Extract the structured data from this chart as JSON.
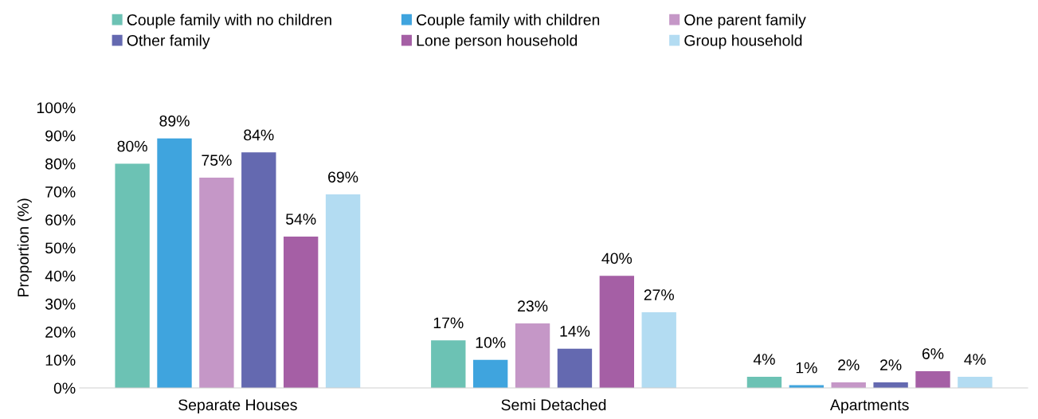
{
  "chart_data": {
    "type": "bar",
    "ylabel": "Proportion (%)",
    "categories": [
      "Separate Houses",
      "Semi Detached",
      "Apartments"
    ],
    "series": [
      {
        "name": "Couple family with no children",
        "color": "#6cc2b4",
        "values": [
          80,
          17,
          4
        ],
        "value_labels": [
          "80%",
          "17%",
          "4%"
        ]
      },
      {
        "name": "Couple family with children",
        "color": "#3fa4de",
        "values": [
          89,
          10,
          1
        ],
        "value_labels": [
          "89%",
          "10%",
          "1%"
        ]
      },
      {
        "name": "One parent family",
        "color": "#c597c7",
        "values": [
          75,
          23,
          2
        ],
        "value_labels": [
          "75%",
          "23%",
          "2%"
        ]
      },
      {
        "name": "Other family",
        "color": "#6469b0",
        "values": [
          84,
          14,
          2
        ],
        "value_labels": [
          "84%",
          "14%",
          "2%"
        ]
      },
      {
        "name": "Lone person household",
        "color": "#a55fa5",
        "values": [
          54,
          40,
          6
        ],
        "value_labels": [
          "54%",
          "40%",
          "6%"
        ]
      },
      {
        "name": "Group household",
        "color": "#b3dcf2",
        "values": [
          69,
          27,
          4
        ],
        "value_labels": [
          "69%",
          "27%",
          "4%"
        ]
      }
    ],
    "ylim": [
      0,
      100
    ],
    "yticks": [
      {
        "value": 0,
        "label": "0%"
      },
      {
        "value": 10,
        "label": "10%"
      },
      {
        "value": 20,
        "label": "20%"
      },
      {
        "value": 30,
        "label": "30%"
      },
      {
        "value": 40,
        "label": "40%"
      },
      {
        "value": 50,
        "label": "50%"
      },
      {
        "value": 60,
        "label": "60%"
      },
      {
        "value": 70,
        "label": "70%"
      },
      {
        "value": 80,
        "label": "80%"
      },
      {
        "value": 90,
        "label": "90%"
      },
      {
        "value": 100,
        "label": "100%"
      }
    ],
    "grid": false,
    "legend": "top"
  }
}
